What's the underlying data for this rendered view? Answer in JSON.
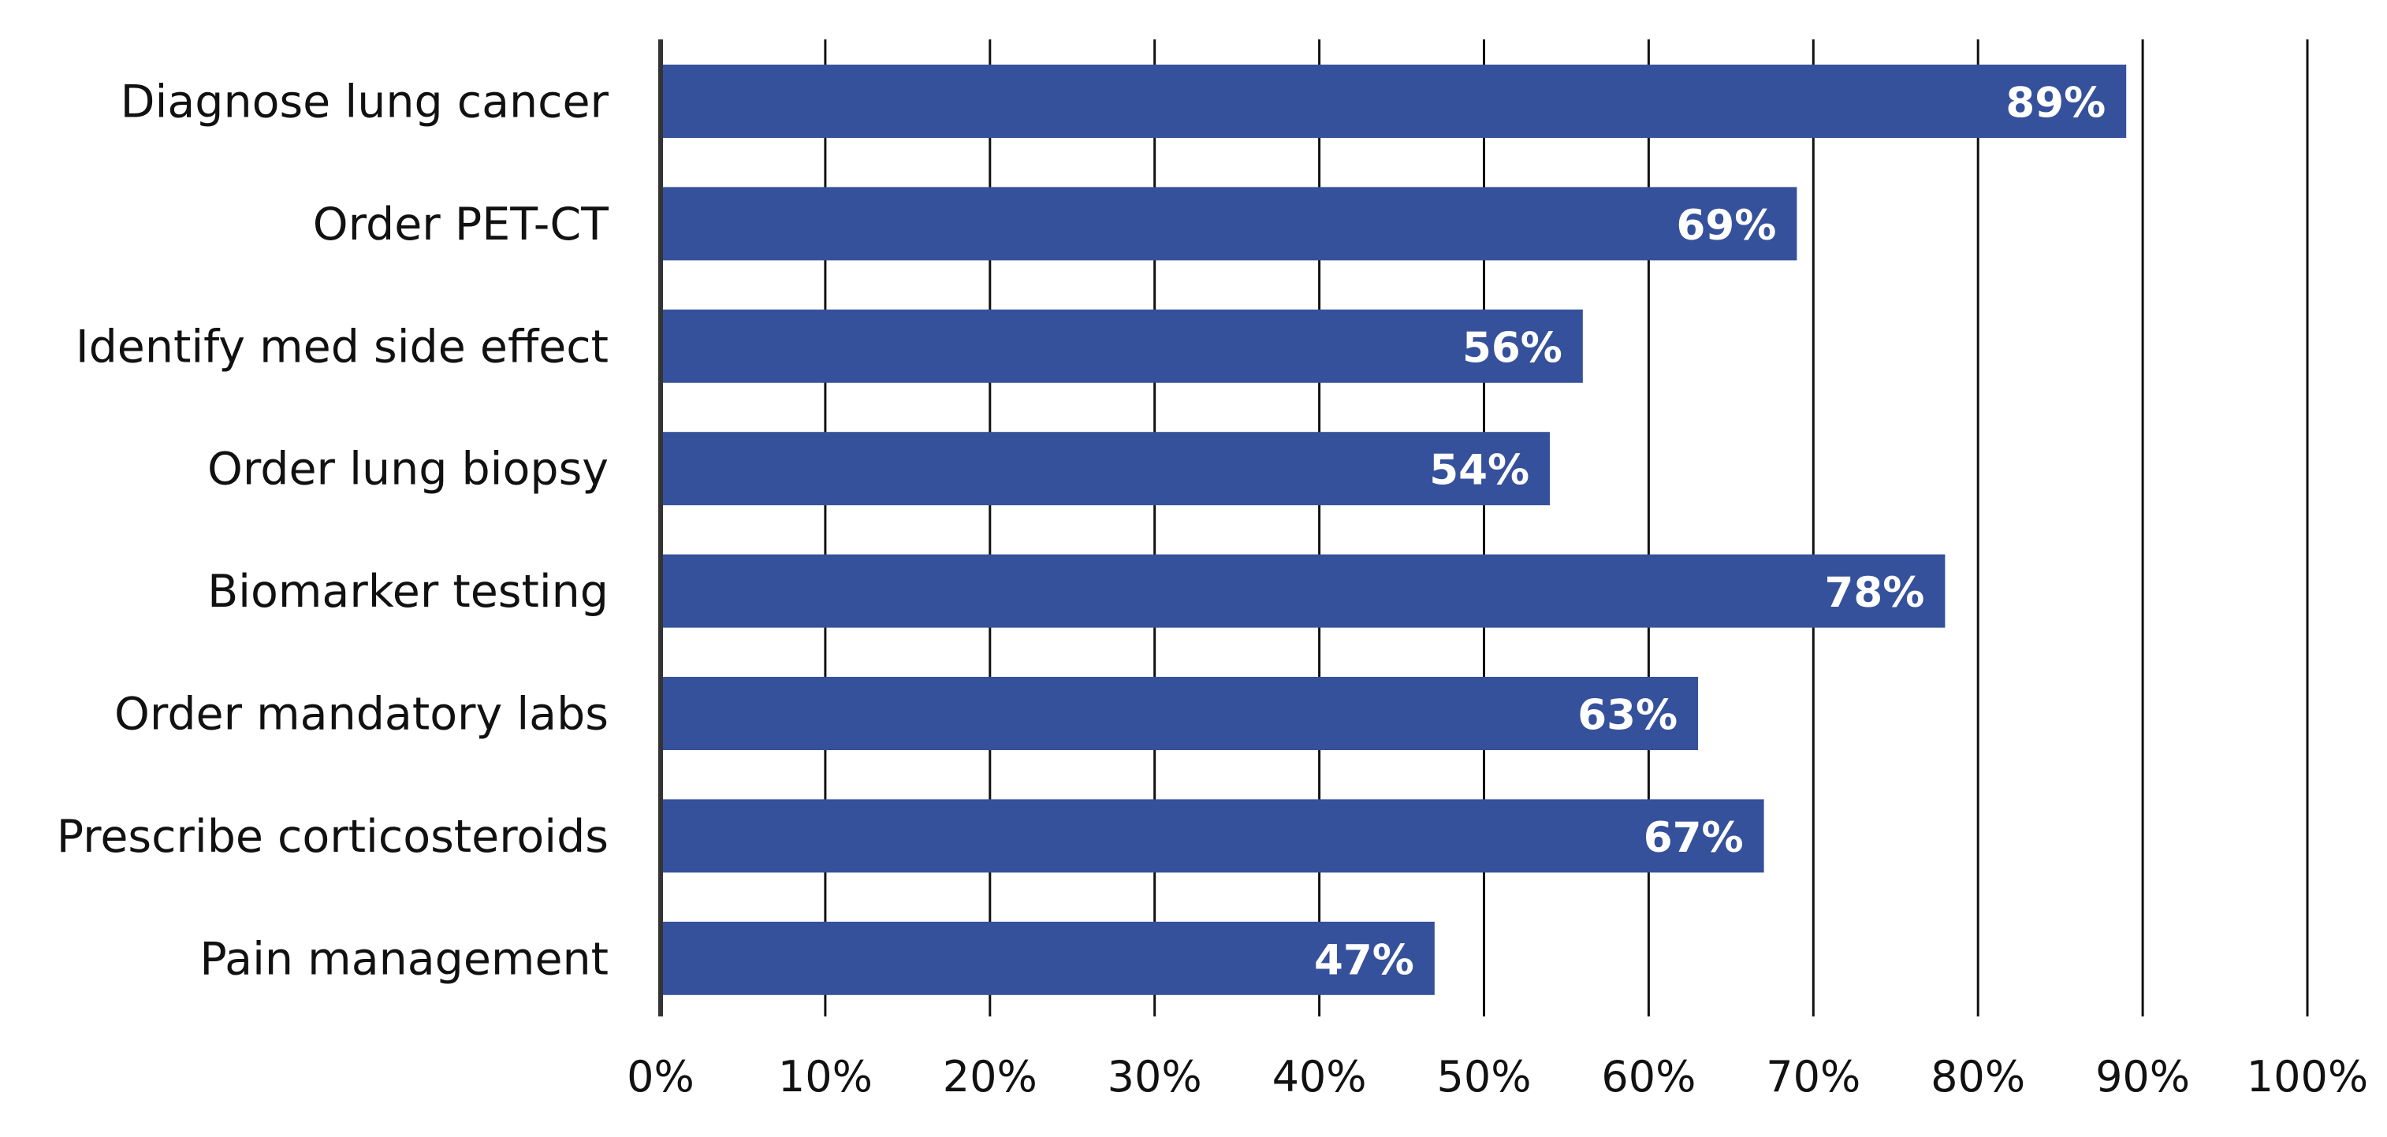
{
  "chart_data": {
    "type": "bar",
    "orientation": "horizontal",
    "title": "",
    "xlabel": "",
    "ylabel": "",
    "categories": [
      "Diagnose lung cancer",
      "Order PET-CT",
      "Identify med side effect",
      "Order lung biopsy",
      "Biomarker testing",
      "Order mandatory labs",
      "Prescribe corticosteroids",
      "Pain management"
    ],
    "values": [
      89,
      69,
      56,
      54,
      78,
      63,
      67,
      47
    ],
    "data_labels": [
      "89%",
      "69%",
      "56%",
      "54%",
      "78%",
      "63%",
      "67%",
      "47%"
    ],
    "xlim": [
      0,
      100
    ],
    "x_ticks": [
      0,
      10,
      20,
      30,
      40,
      50,
      60,
      70,
      80,
      90,
      100
    ],
    "x_tick_labels": [
      "0%",
      "10%",
      "20%",
      "30%",
      "40%",
      "50%",
      "60%",
      "70%",
      "80%",
      "90%",
      "100%"
    ],
    "grid": true,
    "legend": false,
    "bar_color": "#36519b",
    "data_label_color": "#ffffff"
  }
}
